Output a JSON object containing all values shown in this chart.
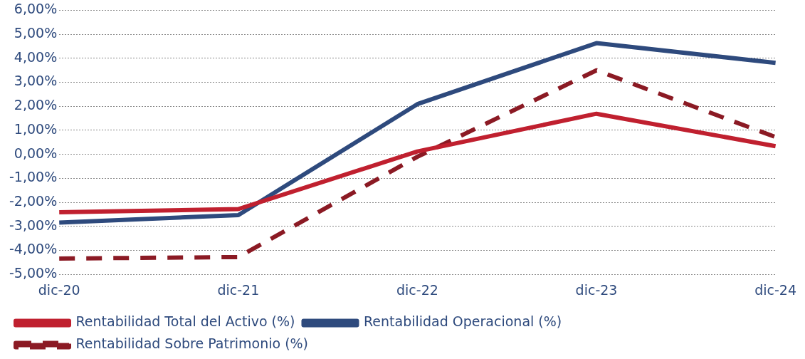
{
  "chart_data": {
    "type": "line",
    "categories": [
      "dic-20",
      "dic-21",
      "dic-22",
      "dic-23",
      "dic-24"
    ],
    "series": [
      {
        "name": "Rentabilidad Total del Activo (%)",
        "color": "#c0202f",
        "values": [
          -2.41,
          -2.28,
          0.12,
          1.69,
          0.34
        ]
      },
      {
        "name": "Rentabilidad Operacional (%)",
        "color": "#2e4a7d",
        "values": [
          -2.84,
          -2.53,
          2.09,
          4.63,
          3.81
        ]
      },
      {
        "name": "Rentabilidad Sobre Patrimonio (%)",
        "color": "#8b1a24",
        "values": [
          -4.34,
          -4.28,
          -0.1,
          3.5,
          0.72
        ],
        "line_style": "dashed"
      }
    ],
    "ylim": [
      -5,
      6
    ],
    "yticks": [
      {
        "value": -5,
        "label": "-5,00%"
      },
      {
        "value": -4,
        "label": "-4,00%"
      },
      {
        "value": -3,
        "label": "-3,00%"
      },
      {
        "value": -2,
        "label": "-2,00%"
      },
      {
        "value": -1,
        "label": "-1,00%"
      },
      {
        "value": 0,
        "label": "0,00%"
      },
      {
        "value": 1,
        "label": "1,00%"
      },
      {
        "value": 2,
        "label": "2,00%"
      },
      {
        "value": 3,
        "label": "3,00%"
      },
      {
        "value": 4,
        "label": "4,00%"
      },
      {
        "value": 5,
        "label": "5,00%"
      },
      {
        "value": 6,
        "label": "6,00%"
      }
    ],
    "grid": "y",
    "legend": "bottom",
    "marker": "none",
    "line_style": "solid"
  }
}
